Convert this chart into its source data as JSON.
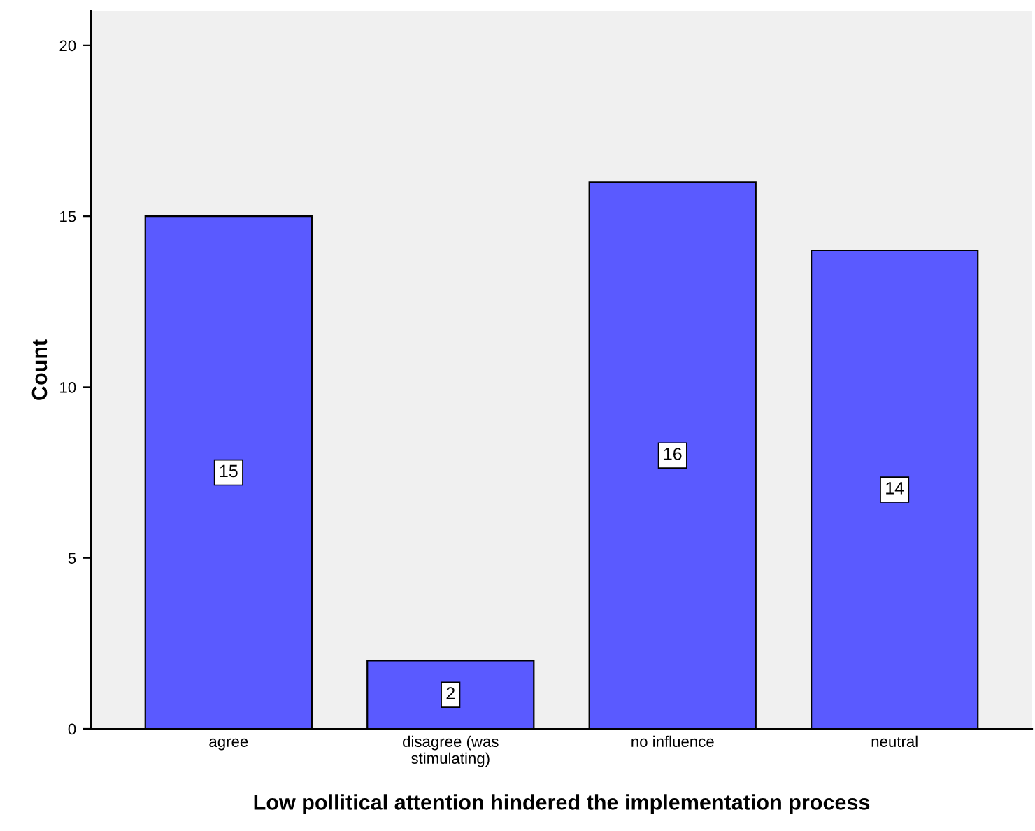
{
  "chart_data": {
    "type": "bar",
    "xlabel": "Low pollitical attention hindered the implementation process",
    "ylabel": "Count",
    "categories": [
      "agree",
      "disagree (was\nstimulating)",
      "no influence",
      "neutral"
    ],
    "values": [
      15,
      2,
      16,
      14
    ],
    "color": "#5a5aff",
    "ylim": [
      0,
      21
    ],
    "yticks": [
      0,
      5,
      10,
      15,
      20
    ],
    "grid": false,
    "data_labels": true
  }
}
